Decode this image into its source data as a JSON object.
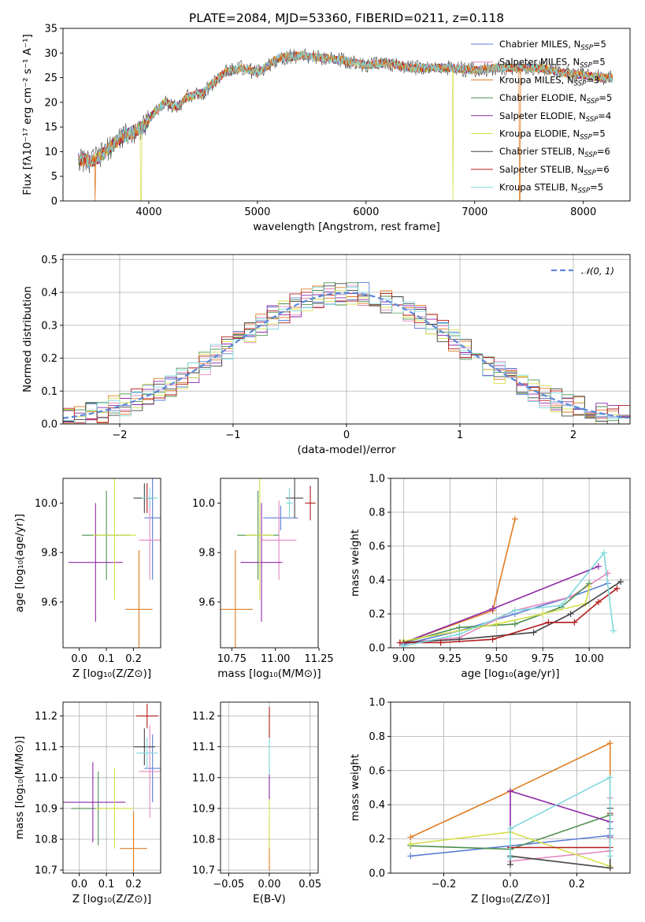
{
  "chart_data": [
    {
      "id": "spectrum",
      "type": "line",
      "title": "PLATE=2084, MJD=53360, FIBERID=0211, z=0.118",
      "xlabel": "wavelength [Angstrom, rest frame]",
      "ylabel": "Flux [fλ10⁻¹⁷ erg cm⁻² s⁻¹ A⁻¹]",
      "xlim": [
        3210,
        8430
      ],
      "ylim": [
        0,
        35
      ],
      "xticks": [
        4000,
        5000,
        6000,
        7000,
        8000
      ],
      "yticks": [
        0,
        5,
        10,
        15,
        20,
        25,
        30,
        35
      ],
      "legend_position": "top-right",
      "continuum": {
        "x": [
          3350,
          3450,
          3550,
          3650,
          3750,
          3850,
          3950,
          4050,
          4150,
          4250,
          4350,
          4500,
          4700,
          4850,
          5000,
          5200,
          5400,
          5600,
          5800,
          6000,
          6200,
          6400,
          6600,
          6800,
          7000,
          7200,
          7400,
          7600,
          7800,
          8000,
          8200
        ],
        "y": [
          8.5,
          8,
          9,
          11,
          13,
          14,
          15,
          18,
          20,
          19,
          21,
          22,
          26,
          27,
          26,
          29,
          29.5,
          29,
          28.5,
          27.5,
          28,
          27,
          27,
          27,
          26.5,
          27,
          27,
          27,
          26,
          25.5,
          25
        ]
      },
      "series": [
        {
          "name": "Chabrier MILES, N_SSP=5",
          "color": "#5b7fd6"
        },
        {
          "name": "Salpeter MILES, N_SSP=5",
          "color": "#e387c0"
        },
        {
          "name": "Kroupa MILES, N_SSP=3",
          "color": "#e07b22"
        },
        {
          "name": "Chabrier ELODIE, N_SSP=5",
          "color": "#4e8f4e"
        },
        {
          "name": "Salpeter ELODIE, N_SSP=4",
          "color": "#8e2aa8"
        },
        {
          "name": "Kroupa ELODIE, N_SSP=5",
          "color": "#d5e04a"
        },
        {
          "name": "Chabrier STELIB, N_SSP=6",
          "color": "#444444"
        },
        {
          "name": "Salpeter STELIB, N_SSP=6",
          "color": "#b31b1b"
        },
        {
          "name": "Kroupa STELIB, N_SSP=5",
          "color": "#7fd8dc"
        }
      ]
    },
    {
      "id": "residuals",
      "type": "line",
      "xlabel": "(data-model)/error",
      "ylabel": "Normed distribution",
      "xlim": [
        -2.5,
        2.5
      ],
      "ylim": [
        0,
        0.515
      ],
      "xticks": [
        -2,
        -1,
        0,
        1,
        2
      ],
      "yticks": [
        0.0,
        0.1,
        0.2,
        0.3,
        0.4,
        0.5
      ],
      "grid": true,
      "legend": "𝒩(0, 1)",
      "legend_position": "top-right",
      "gaussian_color": "#5b87d9"
    },
    {
      "id": "age_vs_Z",
      "type": "scatter",
      "xlabel": "Z [log₁₀(Z/Z⊙)]",
      "ylabel": "age  [log₁₀(age/yr)]",
      "xlim": [
        -0.06,
        0.3
      ],
      "ylim": [
        9.415,
        10.1
      ],
      "xticks": [
        0.0,
        0.1,
        0.2
      ],
      "yticks": [
        9.6,
        9.8,
        10.0
      ],
      "points": [
        {
          "series": 0,
          "x": 0.27,
          "xerr": 0.03,
          "y": 9.94,
          "yerr": 0.25
        },
        {
          "series": 1,
          "x": 0.26,
          "xerr": 0.04,
          "y": 9.85,
          "yerr": 0.16
        },
        {
          "series": 2,
          "x": 0.22,
          "xerr": 0.05,
          "y": 9.57,
          "yerr": 0.24
        },
        {
          "series": 3,
          "x": 0.1,
          "xerr": 0.09,
          "y": 9.87,
          "yerr": 0.18
        },
        {
          "series": 4,
          "x": 0.06,
          "xerr": 0.1,
          "y": 9.76,
          "yerr": 0.24
        },
        {
          "series": 5,
          "x": 0.13,
          "xerr": 0.08,
          "y": 9.87,
          "yerr": 0.26
        },
        {
          "series": 6,
          "x": 0.24,
          "xerr": 0.04,
          "y": 10.02,
          "yerr": 0.06
        },
        {
          "series": 7,
          "x": 0.25,
          "xerr": 0.02,
          "y": 10.02,
          "yerr": 0.06
        },
        {
          "series": 8,
          "x": 0.26,
          "xerr": 0.03,
          "y": 10.02,
          "yerr": 0.04
        }
      ]
    },
    {
      "id": "age_vs_mass",
      "type": "scatter",
      "xlabel": "mass [log₁₀(M/M⊙)]",
      "xlim": [
        10.685,
        11.245
      ],
      "ylim": [
        9.415,
        10.1
      ],
      "xticks": [
        10.75,
        11.0,
        11.25
      ],
      "yticks": [
        9.6,
        9.8,
        10.0
      ],
      "points": [
        {
          "series": 0,
          "x": 11.03,
          "xerr": 0.1,
          "y": 9.94,
          "yerr": 0.05
        },
        {
          "series": 1,
          "x": 11.02,
          "xerr": 0.1,
          "y": 9.85,
          "yerr": 0.16
        },
        {
          "series": 2,
          "x": 10.77,
          "xerr": 0.1,
          "y": 9.57,
          "yerr": 0.24
        },
        {
          "series": 3,
          "x": 10.9,
          "xerr": 0.12,
          "y": 9.87,
          "yerr": 0.18
        },
        {
          "series": 4,
          "x": 10.92,
          "xerr": 0.12,
          "y": 9.76,
          "yerr": 0.24
        },
        {
          "series": 5,
          "x": 10.91,
          "xerr": 0.08,
          "y": 9.87,
          "yerr": 0.26
        },
        {
          "series": 6,
          "x": 11.11,
          "xerr": 0.05,
          "y": 10.02,
          "yerr": 0.08
        },
        {
          "series": 7,
          "x": 11.2,
          "xerr": 0.03,
          "y": 10.0,
          "yerr": 0.07
        },
        {
          "series": 8,
          "x": 11.08,
          "xerr": 0.02,
          "y": 10.0,
          "yerr": 0.06
        }
      ]
    },
    {
      "id": "weight_vs_age",
      "type": "line",
      "xlabel": "age  [log₁₀(age/yr)]",
      "ylabel": "mass weight",
      "xlim": [
        8.93,
        10.22
      ],
      "ylim": [
        0,
        1
      ],
      "xticks": [
        9.0,
        9.25,
        9.5,
        9.75,
        10.0
      ],
      "yticks": [
        0.0,
        0.2,
        0.4,
        0.6,
        0.8,
        1.0
      ],
      "grid": true,
      "series": [
        {
          "series": 0,
          "x": [
            9.0,
            9.3,
            9.6,
            9.9,
            10.1
          ],
          "y": [
            0.02,
            0.1,
            0.2,
            0.3,
            0.38
          ]
        },
        {
          "series": 1,
          "x": [
            9.0,
            9.3,
            9.6,
            9.9,
            10.1
          ],
          "y": [
            0.03,
            0.06,
            0.22,
            0.3,
            0.44
          ]
        },
        {
          "series": 2,
          "x": [
            9.0,
            9.48,
            9.6
          ],
          "y": [
            0.03,
            0.22,
            0.76
          ]
        },
        {
          "series": 3,
          "x": [
            9.0,
            9.3,
            9.6,
            9.85,
            10.0
          ],
          "y": [
            0.03,
            0.12,
            0.14,
            0.24,
            0.38
          ]
        },
        {
          "series": 4,
          "x": [
            9.0,
            9.48,
            10.05
          ],
          "y": [
            0.03,
            0.23,
            0.48
          ]
        },
        {
          "series": 5,
          "x": [
            9.0,
            9.5,
            9.75,
            9.98,
            10.0
          ],
          "y": [
            0.04,
            0.14,
            0.2,
            0.26,
            0.36
          ]
        },
        {
          "series": 6,
          "x": [
            9.0,
            9.3,
            9.7,
            9.9,
            10.17
          ],
          "y": [
            0.03,
            0.05,
            0.09,
            0.2,
            0.39
          ]
        },
        {
          "series": 7,
          "x": [
            8.98,
            9.2,
            9.48,
            9.78,
            9.92,
            10.05,
            10.15
          ],
          "y": [
            0.03,
            0.03,
            0.05,
            0.15,
            0.15,
            0.27,
            0.35
          ]
        },
        {
          "series": 8,
          "x": [
            9.0,
            9.3,
            9.6,
            9.85,
            10.08,
            10.13
          ],
          "y": [
            0.01,
            0.08,
            0.22,
            0.25,
            0.56,
            0.1
          ]
        }
      ]
    },
    {
      "id": "mass_vs_Z",
      "type": "scatter",
      "xlabel": "Z [log₁₀(Z/Z⊙)]",
      "ylabel": "mass [log₁₀(M/M⊙)]",
      "xlim": [
        -0.06,
        0.3
      ],
      "ylim": [
        10.69,
        11.245
      ],
      "xticks": [
        0.0,
        0.1,
        0.2
      ],
      "yticks": [
        10.7,
        10.8,
        10.9,
        11.0,
        11.1,
        11.2
      ],
      "grid": true,
      "points": [
        {
          "series": 0,
          "x": 0.27,
          "xerr": 0.03,
          "y": 11.03,
          "yerr": 0.11
        },
        {
          "series": 1,
          "x": 0.26,
          "xerr": 0.04,
          "y": 11.02,
          "yerr": 0.15
        },
        {
          "series": 2,
          "x": 0.2,
          "xerr": 0.05,
          "y": 10.77,
          "yerr": 0.12
        },
        {
          "series": 3,
          "x": 0.07,
          "xerr": 0.1,
          "y": 10.9,
          "yerr": 0.12
        },
        {
          "series": 4,
          "x": 0.05,
          "xerr": 0.12,
          "y": 10.92,
          "yerr": 0.13
        },
        {
          "series": 5,
          "x": 0.13,
          "xerr": 0.07,
          "y": 10.9,
          "yerr": 0.13
        },
        {
          "series": 6,
          "x": 0.24,
          "xerr": 0.04,
          "y": 11.1,
          "yerr": 0.06
        },
        {
          "series": 7,
          "x": 0.25,
          "xerr": 0.04,
          "y": 11.2,
          "yerr": 0.04
        },
        {
          "series": 8,
          "x": 0.25,
          "xerr": 0.04,
          "y": 11.08,
          "yerr": 0.05
        }
      ]
    },
    {
      "id": "mass_vs_ebv",
      "type": "scatter",
      "xlabel": "E(B-V)",
      "xlim": [
        -0.06,
        0.06
      ],
      "ylim": [
        10.69,
        11.245
      ],
      "xticks": [
        -0.05,
        0.0,
        0.05
      ],
      "yticks": [
        10.7,
        10.8,
        10.9,
        11.0,
        11.1,
        11.2
      ],
      "grid": true,
      "points": [
        {
          "series": 2,
          "x": 0.0,
          "xerr": 0.0,
          "y": 10.77,
          "yerr": 0.07
        },
        {
          "series": 5,
          "x": 0.0,
          "xerr": 0.0,
          "y": 10.87,
          "yerr": 0.1
        },
        {
          "series": 4,
          "x": 0.0,
          "xerr": 0.0,
          "y": 10.98,
          "yerr": 0.05
        },
        {
          "series": 8,
          "x": 0.0,
          "xerr": 0.0,
          "y": 11.08,
          "yerr": 0.07
        },
        {
          "series": 7,
          "x": 0.0,
          "xerr": 0.0,
          "y": 11.18,
          "yerr": 0.05
        }
      ]
    },
    {
      "id": "weight_vs_Z",
      "type": "line",
      "xlabel": "Z [log₁₀(Z/Z⊙)]",
      "ylabel": "mass weight",
      "xlim": [
        -0.36,
        0.36
      ],
      "ylim": [
        0,
        1
      ],
      "xticks": [
        -0.2,
        0.0,
        0.2
      ],
      "yticks": [
        0.0,
        0.2,
        0.4,
        0.6,
        0.8,
        1.0
      ],
      "grid": true,
      "series": [
        {
          "series": 0,
          "x": [
            -0.3,
            0.3,
            0.3
          ],
          "y": [
            0.1,
            0.22,
            0.26
          ]
        },
        {
          "series": 1,
          "x": [
            0.0,
            0.3,
            0.3
          ],
          "y": [
            0.07,
            0.13,
            0.44
          ]
        },
        {
          "series": 2,
          "x": [
            -0.3,
            0.0,
            0.3,
            0.3
          ],
          "y": [
            0.21,
            0.48,
            0.76,
            0.03
          ]
        },
        {
          "series": 3,
          "x": [
            -0.3,
            0.0,
            0.3,
            0.3
          ],
          "y": [
            0.16,
            0.14,
            0.34,
            0.38
          ]
        },
        {
          "series": 4,
          "x": [
            0.0,
            0.0,
            0.3,
            0.3
          ],
          "y": [
            0.24,
            0.48,
            0.3,
            0.21
          ]
        },
        {
          "series": 5,
          "x": [
            -0.3,
            0.0,
            0.3
          ],
          "y": [
            0.17,
            0.24,
            0.04
          ]
        },
        {
          "series": 6,
          "x": [
            0.0,
            0.0,
            0.3,
            0.3
          ],
          "y": [
            0.05,
            0.1,
            0.03,
            0.38
          ]
        },
        {
          "series": 7,
          "x": [
            0.0,
            0.3,
            0.3
          ],
          "y": [
            0.15,
            0.15,
            0.35
          ]
        },
        {
          "series": 8,
          "x": [
            0.0,
            0.0,
            0.3,
            0.3
          ],
          "y": [
            0.09,
            0.26,
            0.56,
            0.1
          ]
        }
      ]
    }
  ]
}
